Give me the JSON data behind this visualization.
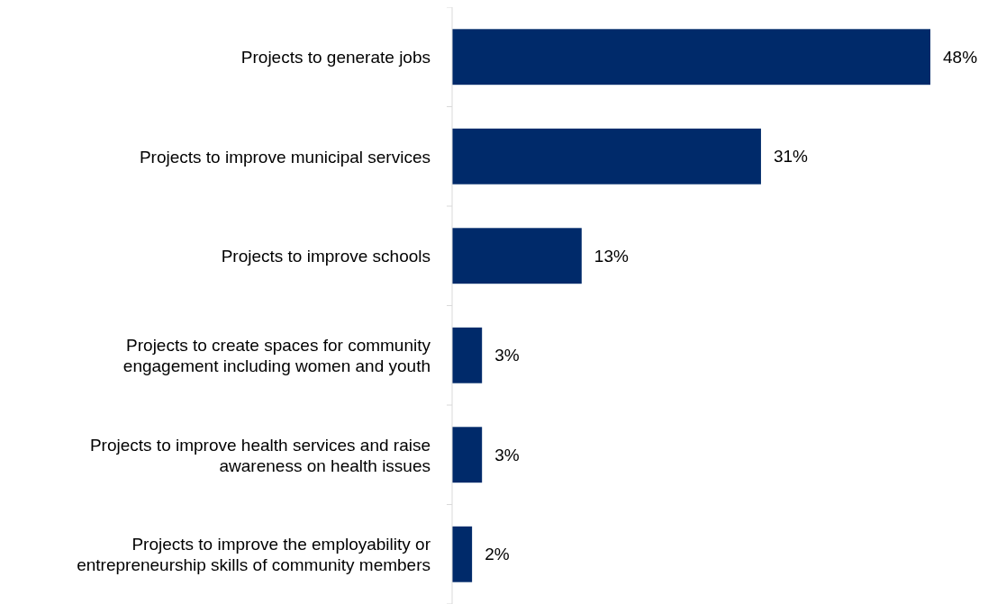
{
  "chart_data": {
    "type": "bar",
    "orientation": "horizontal",
    "categories": [
      "Projects to generate jobs",
      "Projects to improve municipal services",
      "Projects to improve schools",
      "Projects to create spaces for community engagement including women and youth",
      "Projects to improve health services and raise awareness on health issues",
      "Projects to improve the employability or entrepreneurship skills of community members"
    ],
    "values": [
      48,
      31,
      13,
      3,
      3,
      2
    ],
    "value_labels": [
      "48%",
      "31%",
      "13%",
      "3%",
      "3%",
      "2%"
    ],
    "color": "#002a6a"
  }
}
